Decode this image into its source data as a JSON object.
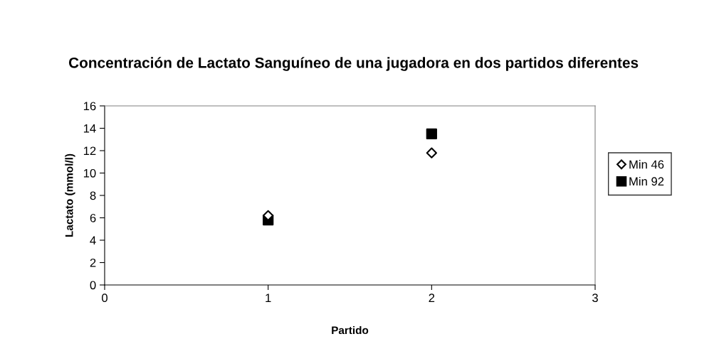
{
  "chart_data": {
    "type": "scatter",
    "title": "Concentración de Lactato Sanguíneo de una jugadora en dos partidos diferentes",
    "xlabel": "Partido",
    "ylabel": "Lactato (mmol/l)",
    "x": [
      1,
      2
    ],
    "series": [
      {
        "name": "Min 46",
        "color": "#000000",
        "marker": "diamond",
        "values": [
          6.2,
          11.8
        ]
      },
      {
        "name": "Min 92",
        "color": "#000000",
        "marker": "square",
        "values": [
          5.8,
          13.5
        ]
      }
    ],
    "xlim": [
      0,
      3
    ],
    "xticks": [
      0,
      1,
      2,
      3
    ],
    "ylim": [
      0,
      16
    ],
    "yticks": [
      0,
      2,
      4,
      6,
      8,
      10,
      12,
      14,
      16
    ],
    "grid": false,
    "legend": "right"
  }
}
